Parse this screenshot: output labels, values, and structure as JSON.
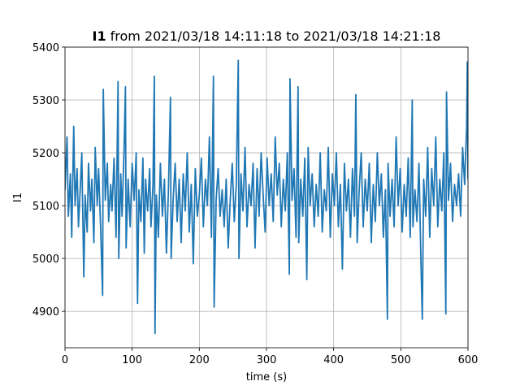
{
  "chart_data": {
    "type": "line",
    "title_parts": [
      "I1",
      "from 2021/03/18 14:11:18 to 2021/03/18 14:21:18"
    ],
    "xlabel": "time (s)",
    "ylabel": "I1",
    "xlim": [
      0,
      600
    ],
    "xticks": [
      0,
      100,
      200,
      300,
      400,
      500,
      600
    ],
    "ylim": [
      4831,
      5400
    ],
    "yticks": [
      4900,
      5000,
      5100,
      5200,
      5300,
      5400
    ],
    "grid": true,
    "x": [
      0,
      3,
      5,
      8,
      10,
      13,
      15,
      18,
      20,
      23,
      25,
      28,
      30,
      33,
      35,
      38,
      40,
      43,
      45,
      48,
      50,
      53,
      56,
      57,
      60,
      63,
      65,
      68,
      70,
      73,
      76,
      79,
      80,
      83,
      85,
      88,
      90,
      91,
      94,
      97,
      100,
      103,
      106,
      108,
      110,
      113,
      116,
      118,
      120,
      123,
      126,
      128,
      131,
      133,
      134,
      136,
      139,
      142,
      145,
      148,
      151,
      154,
      157,
      158,
      161,
      164,
      167,
      170,
      173,
      176,
      179,
      182,
      185,
      188,
      191,
      194,
      197,
      200,
      203,
      206,
      209,
      212,
      215,
      218,
      221,
      222,
      225,
      228,
      231,
      234,
      237,
      240,
      243,
      246,
      249,
      252,
      255,
      258,
      259,
      262,
      265,
      268,
      271,
      274,
      277,
      280,
      283,
      286,
      289,
      292,
      295,
      298,
      301,
      304,
      307,
      310,
      313,
      316,
      319,
      322,
      325,
      328,
      331,
      334,
      335,
      338,
      341,
      344,
      347,
      348,
      351,
      354,
      357,
      360,
      362,
      365,
      368,
      371,
      374,
      377,
      380,
      383,
      386,
      389,
      392,
      395,
      398,
      401,
      404,
      407,
      410,
      413,
      416,
      419,
      422,
      425,
      428,
      431,
      433,
      435,
      438,
      441,
      444,
      447,
      450,
      453,
      456,
      459,
      462,
      465,
      468,
      471,
      474,
      477,
      480,
      481,
      484,
      487,
      490,
      493,
      496,
      499,
      502,
      505,
      508,
      511,
      514,
      517,
      518,
      521,
      524,
      527,
      530,
      532,
      534,
      537,
      540,
      543,
      546,
      549,
      552,
      555,
      558,
      561,
      564,
      567,
      568,
      571,
      574,
      577,
      580,
      583,
      586,
      589,
      592,
      595,
      598,
      599,
      600
    ],
    "series": [
      {
        "name": "I1",
        "color": "#1f77b4",
        "values": [
          5130,
          5230,
          5080,
          5160,
          5040,
          5250,
          5100,
          5170,
          5060,
          5140,
          5200,
          4965,
          5120,
          5050,
          5180,
          5090,
          5150,
          5030,
          5210,
          5100,
          5170,
          5060,
          4930,
          5320,
          5110,
          5180,
          5070,
          5140,
          5090,
          5190,
          5040,
          5335,
          5000,
          5160,
          5080,
          5210,
          5325,
          5020,
          5150,
          5060,
          5180,
          5110,
          5200,
          4915,
          5130,
          5070,
          5190,
          5010,
          5150,
          5090,
          5170,
          5060,
          5140,
          5345,
          4858,
          5120,
          5040,
          5180,
          5080,
          5150,
          5010,
          5130,
          5305,
          5000,
          5110,
          5180,
          5070,
          5150,
          5030,
          5160,
          5090,
          5200,
          5050,
          5140,
          4990,
          5170,
          5080,
          5120,
          5190,
          5060,
          5150,
          5100,
          5230,
          5040,
          5345,
          4908,
          5110,
          5170,
          5080,
          5130,
          5060,
          5150,
          5020,
          5110,
          5180,
          5070,
          5140,
          5375,
          5000,
          5160,
          5090,
          5210,
          5060,
          5140,
          5100,
          5180,
          5020,
          5170,
          5080,
          5200,
          5120,
          5050,
          5190,
          5100,
          5160,
          5070,
          5230,
          5120,
          5180,
          5060,
          5150,
          5090,
          5200,
          4970,
          5340,
          5110,
          5170,
          5040,
          5325,
          5030,
          5150,
          5080,
          5190,
          4960,
          5210,
          5100,
          5160,
          5060,
          5140,
          5080,
          5200,
          5050,
          5130,
          5090,
          5210,
          5040,
          5160,
          5100,
          5200,
          5060,
          5140,
          4980,
          5180,
          5090,
          5150,
          5040,
          5170,
          5080,
          5310,
          5030,
          5130,
          5200,
          5060,
          5150,
          5090,
          5180,
          5030,
          5140,
          5070,
          5200,
          5100,
          5160,
          5040,
          5130,
          4885,
          5180,
          5080,
          5150,
          5060,
          5230,
          5100,
          5170,
          5050,
          5140,
          5080,
          5190,
          5040,
          5300,
          5060,
          5130,
          5070,
          5180,
          4990,
          4885,
          5150,
          5080,
          5210,
          5040,
          5170,
          5100,
          5230,
          5060,
          5150,
          5090,
          5200,
          4895,
          5315,
          5110,
          5180,
          5070,
          5140,
          5100,
          5160,
          5080,
          5210,
          5140,
          5250,
          5372,
          5150
        ]
      }
    ]
  }
}
